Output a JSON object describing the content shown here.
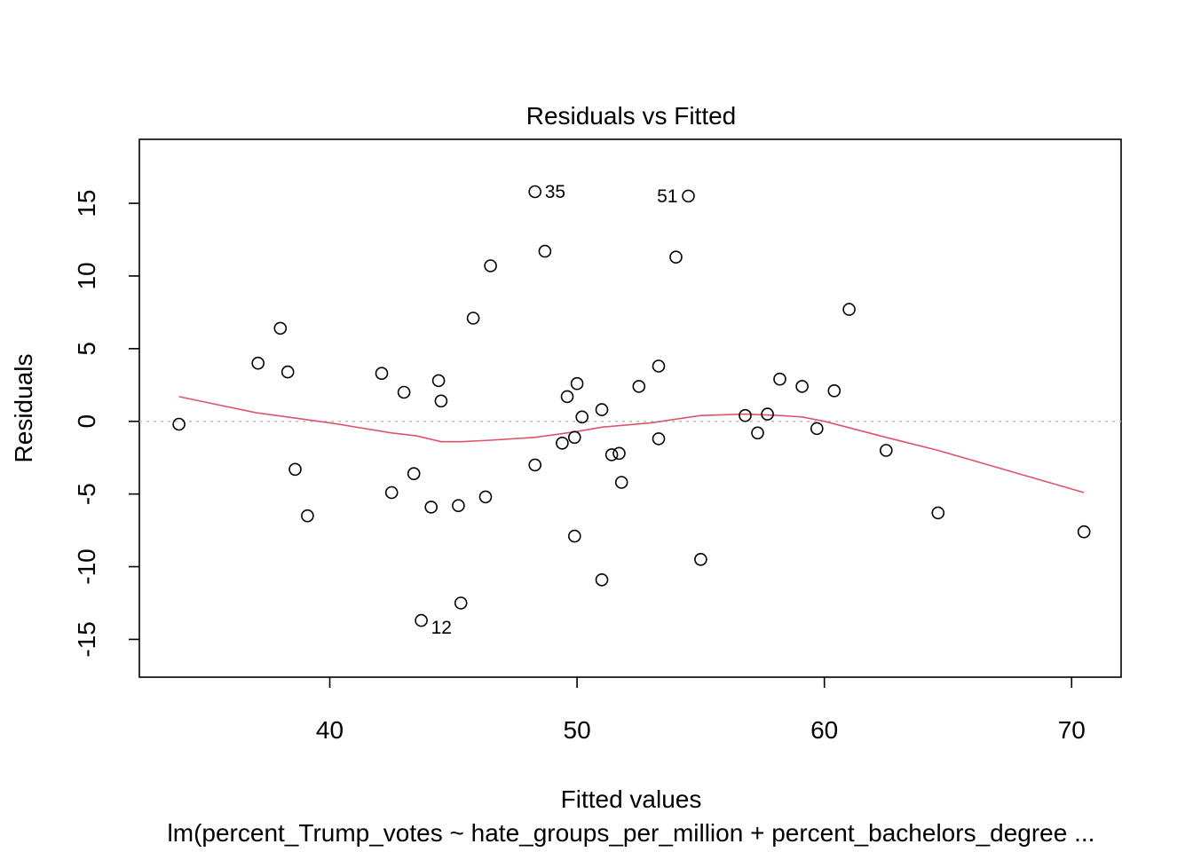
{
  "chart_data": {
    "type": "scatter",
    "title": "Residuals vs Fitted",
    "xlabel": "Fitted values",
    "ylabel": "Residuals",
    "caption": "lm(percent_Trump_votes ~ hate_groups_per_million + percent_bachelors_degree ...",
    "xlim": [
      32.3,
      72.0
    ],
    "ylim": [
      -17.6,
      19.4
    ],
    "x_ticks": [
      40,
      50,
      60,
      70
    ],
    "y_ticks": [
      -15,
      -10,
      -5,
      0,
      5,
      10,
      15
    ],
    "grid": false,
    "reference_line_y": 0,
    "colors": {
      "points": "#000000",
      "smooth": "#DF536B",
      "reference": "#BEBEBE"
    },
    "points": [
      {
        "x": 33.9,
        "y": -0.2
      },
      {
        "x": 37.1,
        "y": 4.0
      },
      {
        "x": 38.0,
        "y": 6.4
      },
      {
        "x": 38.3,
        "y": 3.4
      },
      {
        "x": 38.6,
        "y": -3.3
      },
      {
        "x": 39.1,
        "y": -6.5
      },
      {
        "x": 42.1,
        "y": 3.3
      },
      {
        "x": 42.5,
        "y": -4.9
      },
      {
        "x": 43.0,
        "y": 2.0
      },
      {
        "x": 43.4,
        "y": -3.6
      },
      {
        "x": 43.7,
        "y": -13.7,
        "label": "12"
      },
      {
        "x": 44.1,
        "y": -5.9
      },
      {
        "x": 44.4,
        "y": 2.8
      },
      {
        "x": 44.5,
        "y": 1.4
      },
      {
        "x": 45.2,
        "y": -5.8
      },
      {
        "x": 45.3,
        "y": -12.5
      },
      {
        "x": 45.8,
        "y": 7.1
      },
      {
        "x": 46.3,
        "y": -5.2
      },
      {
        "x": 46.5,
        "y": 10.7
      },
      {
        "x": 48.3,
        "y": 15.8,
        "label": "35"
      },
      {
        "x": 48.3,
        "y": -3.0
      },
      {
        "x": 48.7,
        "y": 11.7
      },
      {
        "x": 49.4,
        "y": -1.5
      },
      {
        "x": 49.6,
        "y": 1.7
      },
      {
        "x": 49.9,
        "y": -7.9
      },
      {
        "x": 49.9,
        "y": -1.1
      },
      {
        "x": 50.0,
        "y": 2.6
      },
      {
        "x": 50.2,
        "y": 0.3
      },
      {
        "x": 51.0,
        "y": -10.9
      },
      {
        "x": 51.0,
        "y": 0.8
      },
      {
        "x": 51.4,
        "y": -2.3
      },
      {
        "x": 51.7,
        "y": -2.2
      },
      {
        "x": 51.8,
        "y": -4.2
      },
      {
        "x": 52.5,
        "y": 2.4
      },
      {
        "x": 53.3,
        "y": 3.8
      },
      {
        "x": 53.3,
        "y": -1.2
      },
      {
        "x": 54.0,
        "y": 11.3
      },
      {
        "x": 54.5,
        "y": 15.5,
        "label": "51"
      },
      {
        "x": 55.0,
        "y": -9.5
      },
      {
        "x": 56.8,
        "y": 0.4
      },
      {
        "x": 57.3,
        "y": -0.8
      },
      {
        "x": 57.7,
        "y": 0.5
      },
      {
        "x": 58.2,
        "y": 2.9
      },
      {
        "x": 59.1,
        "y": 2.4
      },
      {
        "x": 59.7,
        "y": -0.5
      },
      {
        "x": 60.4,
        "y": 2.1
      },
      {
        "x": 61.0,
        "y": 7.7
      },
      {
        "x": 62.5,
        "y": -2.0
      },
      {
        "x": 64.6,
        "y": -6.3
      },
      {
        "x": 70.5,
        "y": -7.6
      }
    ],
    "smooth_line": [
      {
        "x": 33.9,
        "y": 1.7
      },
      {
        "x": 37.0,
        "y": 0.6
      },
      {
        "x": 40.0,
        "y": -0.1
      },
      {
        "x": 42.5,
        "y": -0.8
      },
      {
        "x": 43.5,
        "y": -1.0
      },
      {
        "x": 44.5,
        "y": -1.4
      },
      {
        "x": 45.3,
        "y": -1.4
      },
      {
        "x": 46.5,
        "y": -1.3
      },
      {
        "x": 48.3,
        "y": -1.1
      },
      {
        "x": 50.0,
        "y": -0.7
      },
      {
        "x": 51.0,
        "y": -0.4
      },
      {
        "x": 53.0,
        "y": -0.1
      },
      {
        "x": 55.0,
        "y": 0.4
      },
      {
        "x": 56.8,
        "y": 0.5
      },
      {
        "x": 58.2,
        "y": 0.4
      },
      {
        "x": 59.1,
        "y": 0.3
      },
      {
        "x": 60.0,
        "y": 0.0
      },
      {
        "x": 62.5,
        "y": -1.1
      },
      {
        "x": 64.6,
        "y": -2.0
      },
      {
        "x": 70.5,
        "y": -4.9
      }
    ]
  }
}
